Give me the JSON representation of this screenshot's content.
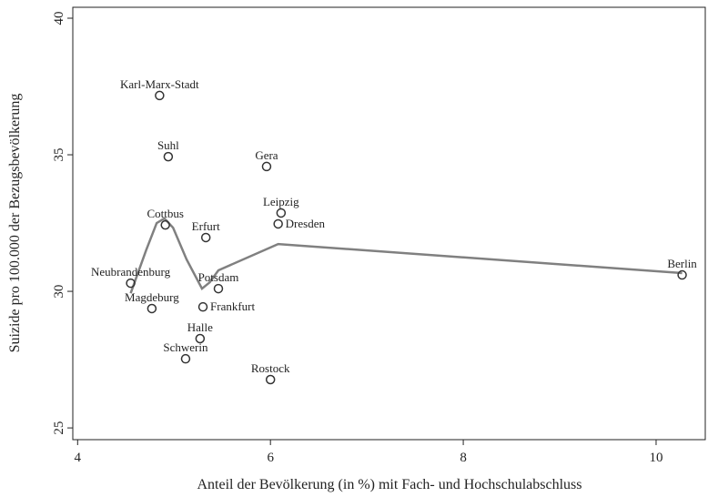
{
  "chart_data": {
    "type": "scatter",
    "xlabel": "Anteil der Bevölkerung (in %) mit Fach- und Hochschulabschluss",
    "ylabel": "Suizide pro 100.000 der Bezugsbevölkerung",
    "labels": [
      "Karl-Marx-Stadt",
      "Suhl",
      "Gera",
      "Leipzig",
      "Dresden",
      "Cottbus",
      "Erfurt",
      "Neubrandenburg",
      "Potsdam",
      "Berlin",
      "Magdeburg",
      "Frankfurt",
      "Halle",
      "Schwerin",
      "Rostock"
    ],
    "x": [
      4.85,
      4.94,
      5.96,
      6.11,
      6.08,
      4.91,
      5.33,
      4.55,
      5.46,
      10.27,
      4.77,
      5.3,
      5.27,
      5.12,
      6.0
    ],
    "y": [
      37.17,
      34.93,
      34.57,
      32.87,
      32.47,
      32.43,
      31.97,
      30.3,
      30.1,
      30.6,
      29.37,
      29.43,
      28.27,
      27.53,
      26.77
    ],
    "line": {
      "x": [
        4.55,
        4.71,
        4.82,
        4.9,
        4.99,
        5.13,
        5.29,
        5.37,
        5.46,
        6.08,
        10.27
      ],
      "y": [
        29.93,
        31.5,
        32.5,
        32.67,
        32.33,
        31.17,
        30.1,
        30.33,
        30.77,
        31.73,
        30.67
      ],
      "color": "#808080"
    },
    "marker_color": "#333333",
    "xlim": [
      3.95,
      10.51
    ],
    "ylim": [
      24.57,
      40.4
    ],
    "xticks": [
      4,
      6,
      8,
      10
    ],
    "yticks": [
      25,
      30,
      35,
      40
    ]
  }
}
